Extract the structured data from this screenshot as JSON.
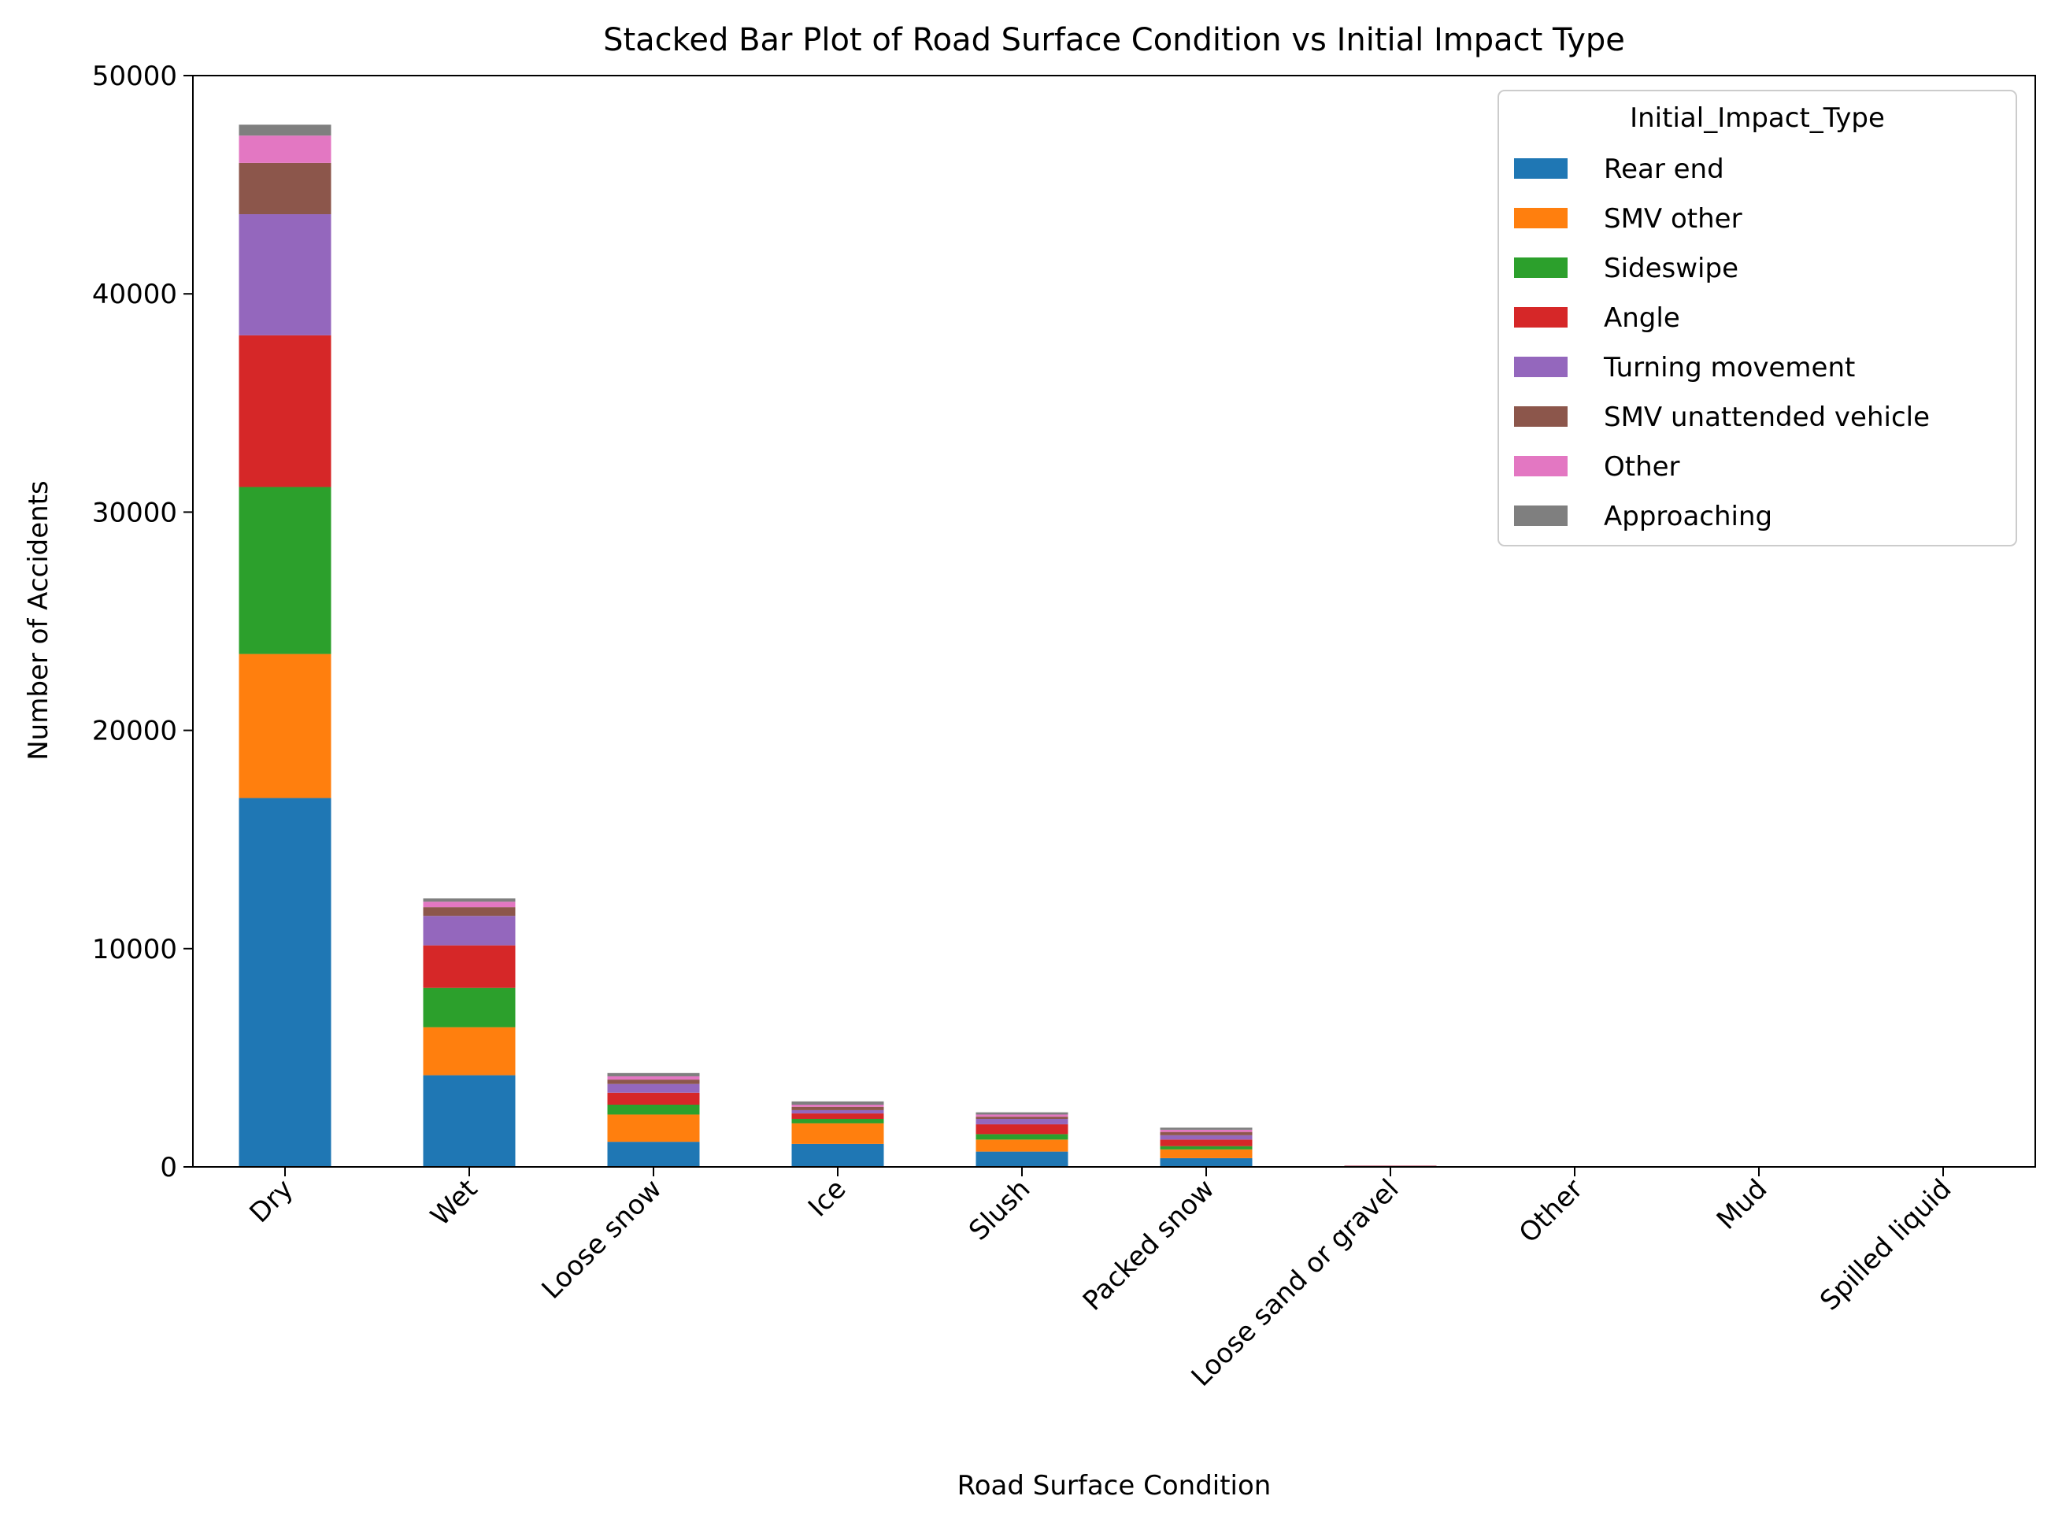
{
  "chart_data": {
    "type": "bar",
    "stacked": true,
    "title": "Stacked Bar Plot of Road Surface Condition vs Initial Impact Type",
    "xlabel": "Road Surface Condition",
    "ylabel": "Number of Accidents",
    "ylim": [
      0,
      50000
    ],
    "yticks": [
      "0",
      "10000",
      "20000",
      "30000",
      "40000",
      "50000"
    ],
    "grid": false,
    "legend": {
      "title": "Initial_Impact_Type",
      "placement": "top-right"
    },
    "categories": [
      "Dry",
      "Wet",
      "Loose snow",
      "Ice",
      "Slush",
      "Packed snow",
      "Loose sand or gravel",
      "Other",
      "Mud",
      "Spilled liquid"
    ],
    "series": [
      {
        "name": "Rear end",
        "color": "#1f77b4",
        "values": [
          16900,
          4200,
          1150,
          1050,
          700,
          400,
          10,
          3,
          2,
          1
        ]
      },
      {
        "name": "SMV other",
        "color": "#ff7f0e",
        "values": [
          6600,
          2200,
          1250,
          950,
          550,
          400,
          20,
          5,
          3,
          2
        ]
      },
      {
        "name": "Sideswipe",
        "color": "#2ca02c",
        "values": [
          7650,
          1800,
          450,
          200,
          250,
          150,
          5,
          2,
          1,
          1
        ]
      },
      {
        "name": "Angle",
        "color": "#d62728",
        "values": [
          6950,
          1950,
          550,
          250,
          450,
          300,
          15,
          3,
          2,
          1
        ]
      },
      {
        "name": "Turning movement",
        "color": "#9467bd",
        "values": [
          5550,
          1350,
          400,
          150,
          250,
          200,
          5,
          2,
          1,
          1
        ]
      },
      {
        "name": "SMV unattended vehicle",
        "color": "#8c564b",
        "values": [
          2350,
          400,
          200,
          150,
          100,
          150,
          5,
          2,
          1,
          1
        ]
      },
      {
        "name": "Other",
        "color": "#e377c2",
        "values": [
          1250,
          250,
          150,
          100,
          100,
          100,
          3,
          1,
          1,
          1
        ]
      },
      {
        "name": "Approaching",
        "color": "#7f7f7f",
        "values": [
          500,
          150,
          150,
          150,
          100,
          100,
          2,
          1,
          1,
          1
        ]
      }
    ]
  }
}
